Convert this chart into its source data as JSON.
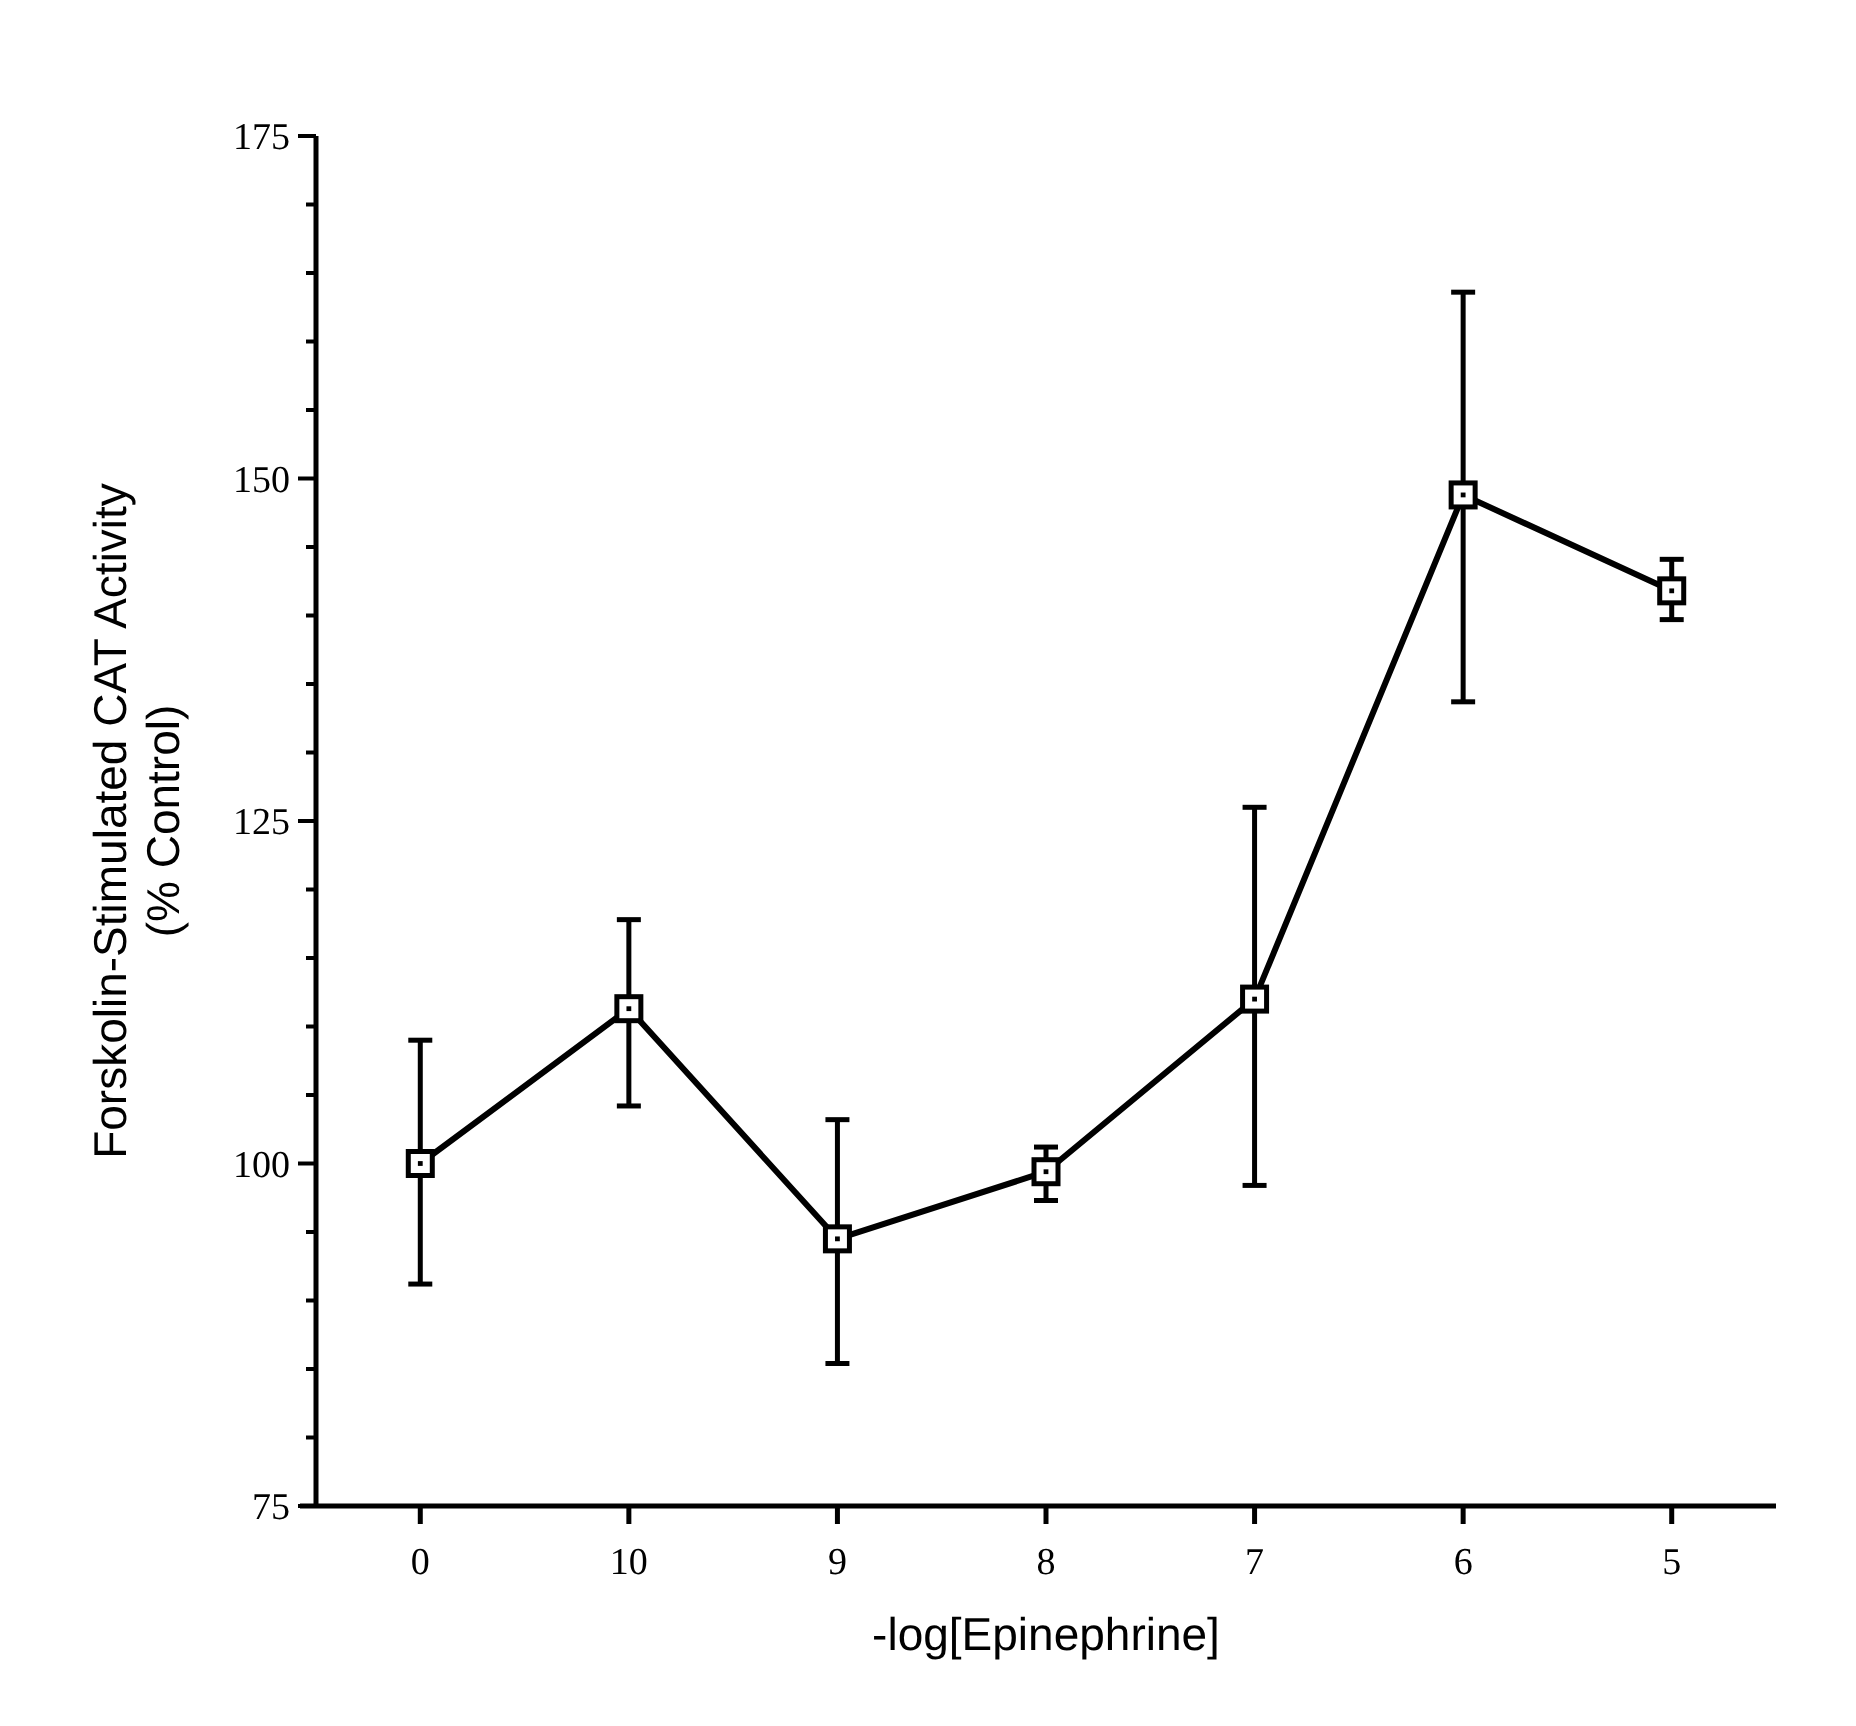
{
  "chart_data": {
    "type": "line",
    "xlabel": "-log[Epinephrine]",
    "ylabel": "Forskolin-Stimulated CAT Activity\n(% Control)",
    "categories": [
      "0",
      "10",
      "9",
      "8",
      "7",
      "6",
      "5"
    ],
    "series": [
      {
        "color": "#000000",
        "values": [
          100,
          111.3,
          94.5,
          99.4,
          112,
          148.8,
          141.8
        ],
        "errors": [
          [
            91.2,
            109
          ],
          [
            104.2,
            117.8
          ],
          [
            85.4,
            103.2
          ],
          [
            97.3,
            101.2
          ],
          [
            98.4,
            126
          ],
          [
            133.7,
            163.6
          ],
          [
            139.7,
            144.1
          ]
        ]
      }
    ],
    "ylim": [
      75,
      175
    ],
    "yticks": [
      75,
      100,
      125,
      150,
      175,
      {
        "value": 80,
        "label": null
      },
      {
        "value": 85,
        "label": null
      },
      {
        "value": 90,
        "label": null
      },
      {
        "value": 95,
        "label": null
      },
      {
        "value": 105,
        "label": null
      },
      {
        "value": 110,
        "label": null
      },
      {
        "value": 115,
        "label": null
      },
      {
        "value": 120,
        "label": null
      },
      {
        "value": 130,
        "label": null
      },
      {
        "value": 135,
        "label": null
      },
      {
        "value": 140,
        "label": null
      },
      {
        "value": 145,
        "label": null
      },
      {
        "value": 155,
        "label": null
      },
      {
        "value": 160,
        "label": null
      },
      {
        "value": 165,
        "label": null
      },
      {
        "value": 170,
        "label": null
      }
    ],
    "marker": "square",
    "line_style": "solid"
  }
}
